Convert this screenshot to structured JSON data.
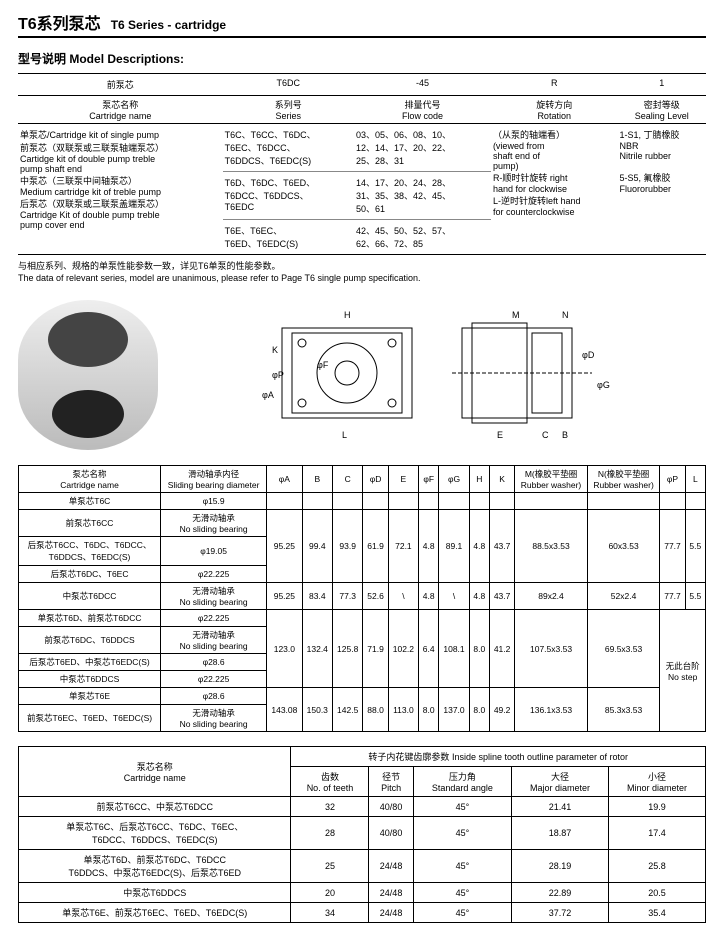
{
  "header": {
    "cn": "T6系列泵芯",
    "en": "T6 Series - cartridge"
  },
  "subhead": {
    "cn": "型号说明",
    "en": "Model Descriptions:"
  },
  "t1": {
    "cols": [
      {
        "v": "前泵芯"
      },
      {
        "v": "T6DC"
      },
      {
        "v": "-45"
      },
      {
        "v": "R"
      },
      {
        "v": "1"
      }
    ],
    "labels": [
      {
        "cn": "泵芯名称",
        "en": "Cartridge name"
      },
      {
        "cn": "系列号",
        "en": "Series"
      },
      {
        "cn": "排量代号",
        "en": "Flow code"
      },
      {
        "cn": "旋转方向",
        "en": "Rotation"
      },
      {
        "cn": "密封等级",
        "en": "Sealing Level"
      }
    ],
    "body": {
      "names": "单泵芯/Cartridge kit of single pump\n前泵芯（双联泵或三联泵轴端泵芯）\nCartidge kit of double pump treble\npump shaft end\n中泵芯（三联泵中间轴泵芯）\nMedium cartridge kit of treble pump\n后泵芯（双联泵或三联泵盖端泵芯）\nCartridge Kit of double pump treble\npump cover end",
      "series": [
        "T6C、T6CC、T6DC、\nT6EC、T6DCC、\nT6DDCS、T6EDC(S)",
        "T6D、T6DC、T6ED、\nT6DCC、T6DDCS、\nT6EDC",
        "T6E、T6EC、\nT6ED、T6EDC(S)"
      ],
      "flow": [
        "03、05、06、08、10、\n12、14、17、20、22、\n25、28、31",
        "14、17、20、24、28、\n31、35、38、42、45、\n50、61",
        "42、45、50、52、57、\n62、66、72、85"
      ],
      "rotation": "（从泵的轴端看）\n(viewed from\nshaft end of\npump)\nR-顺时针旋转  right\nhand for clockwise\nL-逆时针旋转left hand\nfor counterclockwise",
      "sealing": "1-S1, 丁腈橡胶\nNBR\nNitrile rubber\n\n5-S5, 氟橡胶\nFluororubber"
    }
  },
  "note": {
    "cn": "与相应系列、规格的单泵性能参数一致，详见T6单泵的性能参数。",
    "en": "The data of relevant series, model are unanimous, please refer to Page T6 single pump specification."
  },
  "diagram_labels": [
    "H",
    "M",
    "N",
    "K",
    "φF",
    "φP",
    "φA",
    "L",
    "E",
    "C",
    "B",
    "φD",
    "φG"
  ],
  "t2": {
    "head1": {
      "name_cn": "泵芯名称",
      "name_en": "Cartridge name",
      "sb_cn": "滑动轴承内径",
      "sb_en": "Sliding bearing diameter",
      "c": [
        "φA",
        "B",
        "C",
        "φD",
        "E",
        "φF",
        "φG",
        "H",
        "K"
      ],
      "m": {
        "cn": "M(橡胶平垫圈",
        "en": "Rubber washer)"
      },
      "n": {
        "cn": "N(橡胶平垫圈",
        "en": "Rubber washer)"
      },
      "pl": [
        "φP",
        "L"
      ]
    },
    "rows": [
      {
        "name": "单泵芯T6C",
        "sb": "φ15.9",
        "a": "",
        "b": "",
        "c": "",
        "d": "",
        "e": "",
        "f": "",
        "g": "",
        "h": "",
        "k": "",
        "m": "",
        "n": "",
        "p": "",
        "l": ""
      },
      {
        "name": "前泵芯T6CC",
        "sb": "无滑动轴承\nNo sliding bearing",
        "a": "95.25",
        "b": "99.4",
        "c": "93.9",
        "d": "61.9",
        "e": "72.1",
        "f": "4.8",
        "g": "89.1",
        "h": "4.8",
        "k": "43.7",
        "m": "88.5x3.53",
        "n": "60x3.53",
        "p": "77.7",
        "l": "5.5",
        "rs": 3
      },
      {
        "name": "后泵芯T6CC、T6DC、T6DCC、\nT6DDCS、T6EDC(S)",
        "sb": "φ19.05"
      },
      {
        "name": "后泵芯T6DC、T6EC",
        "sb": "φ22.225"
      },
      {
        "name": "中泵芯T6DCC",
        "sb": "无滑动轴承\nNo sliding bearing",
        "a": "95.25",
        "b": "83.4",
        "c": "77.3",
        "d": "52.6",
        "e": "\\",
        "f": "4.8",
        "g": "\\",
        "h": "4.8",
        "k": "43.7",
        "m": "89x2.4",
        "n": "52x2.4",
        "p": "77.7",
        "l": "5.5"
      },
      {
        "name": "单泵芯T6D、前泵芯T6DCC",
        "sb": "φ22.225",
        "a": "123.0",
        "b": "132.4",
        "c": "125.8",
        "d": "71.9",
        "e": "102.2",
        "f": "6.4",
        "g": "108.1",
        "h": "8.0",
        "k": "41.2",
        "m": "107.5x3.53",
        "n": "69.5x3.53",
        "p": "无此台阶\nNo step",
        "l": "",
        "rs": 4,
        "plrs": 6
      },
      {
        "name": "前泵芯T6DC、T6DDCS",
        "sb": "无滑动轴承\nNo sliding bearing"
      },
      {
        "name": "后泵芯T6ED、中泵芯T6EDC(S)",
        "sb": "φ28.6"
      },
      {
        "name": "中泵芯T6DDCS",
        "sb": "φ22.225"
      },
      {
        "name": "单泵芯T6E",
        "sb": "φ28.6",
        "a": "143.08",
        "b": "150.3",
        "c": "142.5",
        "d": "88.0",
        "e": "113.0",
        "f": "8.0",
        "g": "137.0",
        "h": "8.0",
        "k": "49.2",
        "m": "136.1x3.53",
        "n": "85.3x3.53",
        "rs": 2
      },
      {
        "name": "前泵芯T6EC、T6ED、T6EDC(S)",
        "sb": "无滑动轴承\nNo sliding bearing"
      }
    ]
  },
  "t3": {
    "head": {
      "name_cn": "泵芯名称",
      "name_en": "Cartridge name",
      "spline_cn": "转子内花键齿廓参数",
      "spline_en": "Inside spline tooth outline parameter of rotor",
      "cols": [
        {
          "cn": "齿数",
          "en": "No. of teeth"
        },
        {
          "cn": "径节",
          "en": "Pitch"
        },
        {
          "cn": "压力角",
          "en": "Standard angle"
        },
        {
          "cn": "大径",
          "en": "Major diameter"
        },
        {
          "cn": "小径",
          "en": "Minor diameter"
        }
      ]
    },
    "rows": [
      {
        "name": "前泵芯T6CC、中泵芯T6DCC",
        "v": [
          "32",
          "40/80",
          "45°",
          "21.41",
          "19.9"
        ]
      },
      {
        "name": "单泵芯T6C、后泵芯T6CC、T6DC、T6EC、\nT6DCC、T6DDCS、T6EDC(S)",
        "v": [
          "28",
          "40/80",
          "45°",
          "18.87",
          "17.4"
        ]
      },
      {
        "name": "单泵芯T6D、前泵芯T6DC、T6DCC\nT6DDCS、中泵芯T6EDC(S)、后泵芯T6ED",
        "v": [
          "25",
          "24/48",
          "45°",
          "28.19",
          "25.8"
        ]
      },
      {
        "name": "中泵芯T6DDCS",
        "v": [
          "20",
          "24/48",
          "45°",
          "22.89",
          "20.5"
        ]
      },
      {
        "name": "单泵芯T6E、前泵芯T6EC、T6ED、T6EDC(S)",
        "v": [
          "34",
          "24/48",
          "45°",
          "37.72",
          "35.4"
        ]
      }
    ]
  }
}
